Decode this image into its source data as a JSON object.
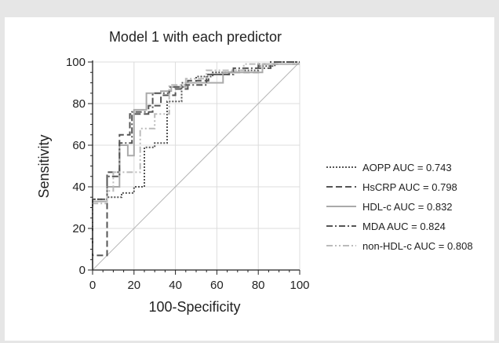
{
  "chart_data": {
    "type": "line",
    "title": "Model 1 with each predictor",
    "xlabel": "100-Specificity",
    "ylabel": "Sensitivity",
    "xlim": [
      0,
      100
    ],
    "ylim": [
      0,
      100
    ],
    "xticks": [
      "0",
      "20",
      "40",
      "60",
      "80",
      "100"
    ],
    "yticks": [
      "0",
      "20",
      "40",
      "60",
      "80",
      "100"
    ],
    "grid": true,
    "legend_position": "right",
    "diagonal_reference": true,
    "series": [
      {
        "name": "AOPP AUC = 0.743",
        "style": "dotted",
        "color": "#555555",
        "points": [
          [
            0,
            0
          ],
          [
            0,
            34
          ],
          [
            7,
            34
          ],
          [
            7,
            35
          ],
          [
            14,
            35
          ],
          [
            14,
            37
          ],
          [
            20,
            37
          ],
          [
            20,
            40
          ],
          [
            25,
            40
          ],
          [
            25,
            59
          ],
          [
            30,
            59
          ],
          [
            30,
            61
          ],
          [
            36,
            61
          ],
          [
            36,
            81
          ],
          [
            43,
            81
          ],
          [
            43,
            90
          ],
          [
            50,
            90
          ],
          [
            50,
            93
          ],
          [
            58,
            93
          ],
          [
            58,
            95
          ],
          [
            67,
            95
          ],
          [
            67,
            96
          ],
          [
            80,
            96
          ],
          [
            80,
            98
          ],
          [
            88,
            98
          ],
          [
            88,
            100
          ],
          [
            100,
            100
          ]
        ]
      },
      {
        "name": "HsCRP AUC = 0.798",
        "style": "dashed",
        "color": "#555555",
        "points": [
          [
            0,
            0
          ],
          [
            0,
            7
          ],
          [
            7,
            7
          ],
          [
            7,
            47
          ],
          [
            13,
            47
          ],
          [
            13,
            65
          ],
          [
            18,
            65
          ],
          [
            18,
            75
          ],
          [
            27,
            75
          ],
          [
            27,
            79
          ],
          [
            33,
            79
          ],
          [
            33,
            84
          ],
          [
            40,
            84
          ],
          [
            40,
            87
          ],
          [
            46,
            87
          ],
          [
            46,
            91
          ],
          [
            56,
            91
          ],
          [
            56,
            94
          ],
          [
            66,
            94
          ],
          [
            66,
            95
          ],
          [
            80,
            95
          ],
          [
            80,
            99
          ],
          [
            100,
            99
          ]
        ]
      },
      {
        "name": "HDL-c AUC = 0.832",
        "style": "solid",
        "color": "#aaaaaa",
        "points": [
          [
            0,
            0
          ],
          [
            0,
            33
          ],
          [
            7,
            33
          ],
          [
            7,
            40
          ],
          [
            13,
            40
          ],
          [
            13,
            60
          ],
          [
            17,
            60
          ],
          [
            17,
            55
          ],
          [
            20,
            55
          ],
          [
            20,
            77
          ],
          [
            26,
            77
          ],
          [
            26,
            85
          ],
          [
            33,
            85
          ],
          [
            33,
            86
          ],
          [
            38,
            86
          ],
          [
            38,
            88
          ],
          [
            45,
            88
          ],
          [
            45,
            90
          ],
          [
            63,
            90
          ],
          [
            63,
            95
          ],
          [
            82,
            95
          ],
          [
            82,
            99
          ],
          [
            100,
            99
          ]
        ]
      },
      {
        "name": "MDA AUC = 0.824",
        "style": "dashdot",
        "color": "#555555",
        "points": [
          [
            0,
            0
          ],
          [
            0,
            34
          ],
          [
            7,
            34
          ],
          [
            7,
            45
          ],
          [
            13,
            45
          ],
          [
            13,
            61
          ],
          [
            19,
            61
          ],
          [
            19,
            76
          ],
          [
            29,
            76
          ],
          [
            29,
            85
          ],
          [
            37,
            85
          ],
          [
            37,
            88
          ],
          [
            44,
            88
          ],
          [
            44,
            89
          ],
          [
            55,
            89
          ],
          [
            55,
            94
          ],
          [
            68,
            94
          ],
          [
            68,
            97
          ],
          [
            86,
            97
          ],
          [
            86,
            100
          ],
          [
            100,
            100
          ]
        ]
      },
      {
        "name": "non-HDL-c AUC = 0.808",
        "style": "dashdotdot",
        "color": "#bbbbbb",
        "points": [
          [
            0,
            0
          ],
          [
            0,
            32
          ],
          [
            7,
            32
          ],
          [
            7,
            38
          ],
          [
            10,
            38
          ],
          [
            10,
            47
          ],
          [
            23,
            47
          ],
          [
            23,
            68
          ],
          [
            30,
            68
          ],
          [
            30,
            75
          ],
          [
            37,
            75
          ],
          [
            37,
            89
          ],
          [
            45,
            89
          ],
          [
            45,
            92
          ],
          [
            55,
            92
          ],
          [
            55,
            96
          ],
          [
            73,
            96
          ],
          [
            73,
            99
          ],
          [
            100,
            99
          ]
        ]
      }
    ]
  }
}
